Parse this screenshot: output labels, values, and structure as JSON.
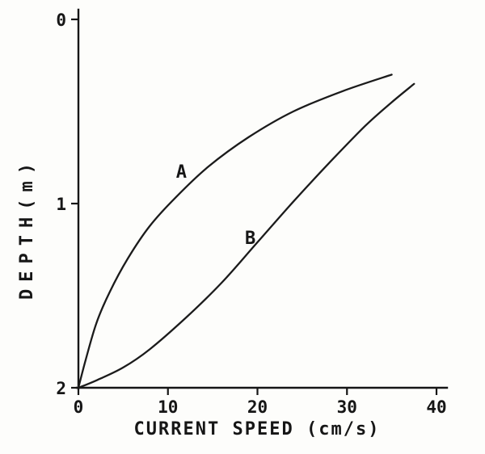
{
  "figure": {
    "background": "#fdfdfb",
    "ink": "#161616",
    "style": "scanned monochrome line figure"
  },
  "chart_data": {
    "type": "line",
    "title": "",
    "xlabel": "CURRENT SPEED (cm/s)",
    "ylabel": "DEPTH(m)",
    "xlim": [
      0,
      40
    ],
    "ylim": [
      0,
      2
    ],
    "y_axis_inverted_depth_downward": true,
    "x_ticks": [
      0,
      10,
      20,
      30,
      40
    ],
    "y_ticks": [
      0,
      1,
      2
    ],
    "grid": false,
    "legend_position": "inline-curve-labels",
    "series": [
      {
        "name": "A",
        "label": "A",
        "label_position": {
          "x": 11.5,
          "y": 0.86
        },
        "points_speed_depth": [
          [
            0,
            2.0
          ],
          [
            0.8,
            1.85
          ],
          [
            2.0,
            1.65
          ],
          [
            3.5,
            1.48
          ],
          [
            5.5,
            1.3
          ],
          [
            8.0,
            1.12
          ],
          [
            11.0,
            0.96
          ],
          [
            14.5,
            0.8
          ],
          [
            19.0,
            0.64
          ],
          [
            24.0,
            0.5
          ],
          [
            29.5,
            0.39
          ],
          [
            35.0,
            0.3
          ]
        ]
      },
      {
        "name": "B",
        "label": "B",
        "label_position": {
          "x": 19.2,
          "y": 1.22
        },
        "points_speed_depth": [
          [
            0,
            2.0
          ],
          [
            2.0,
            1.96
          ],
          [
            5.0,
            1.89
          ],
          [
            8.0,
            1.79
          ],
          [
            12.0,
            1.62
          ],
          [
            16.0,
            1.43
          ],
          [
            20.0,
            1.21
          ],
          [
            24.0,
            0.99
          ],
          [
            28.0,
            0.78
          ],
          [
            32.0,
            0.58
          ],
          [
            35.0,
            0.45
          ],
          [
            37.5,
            0.35
          ]
        ]
      }
    ]
  }
}
